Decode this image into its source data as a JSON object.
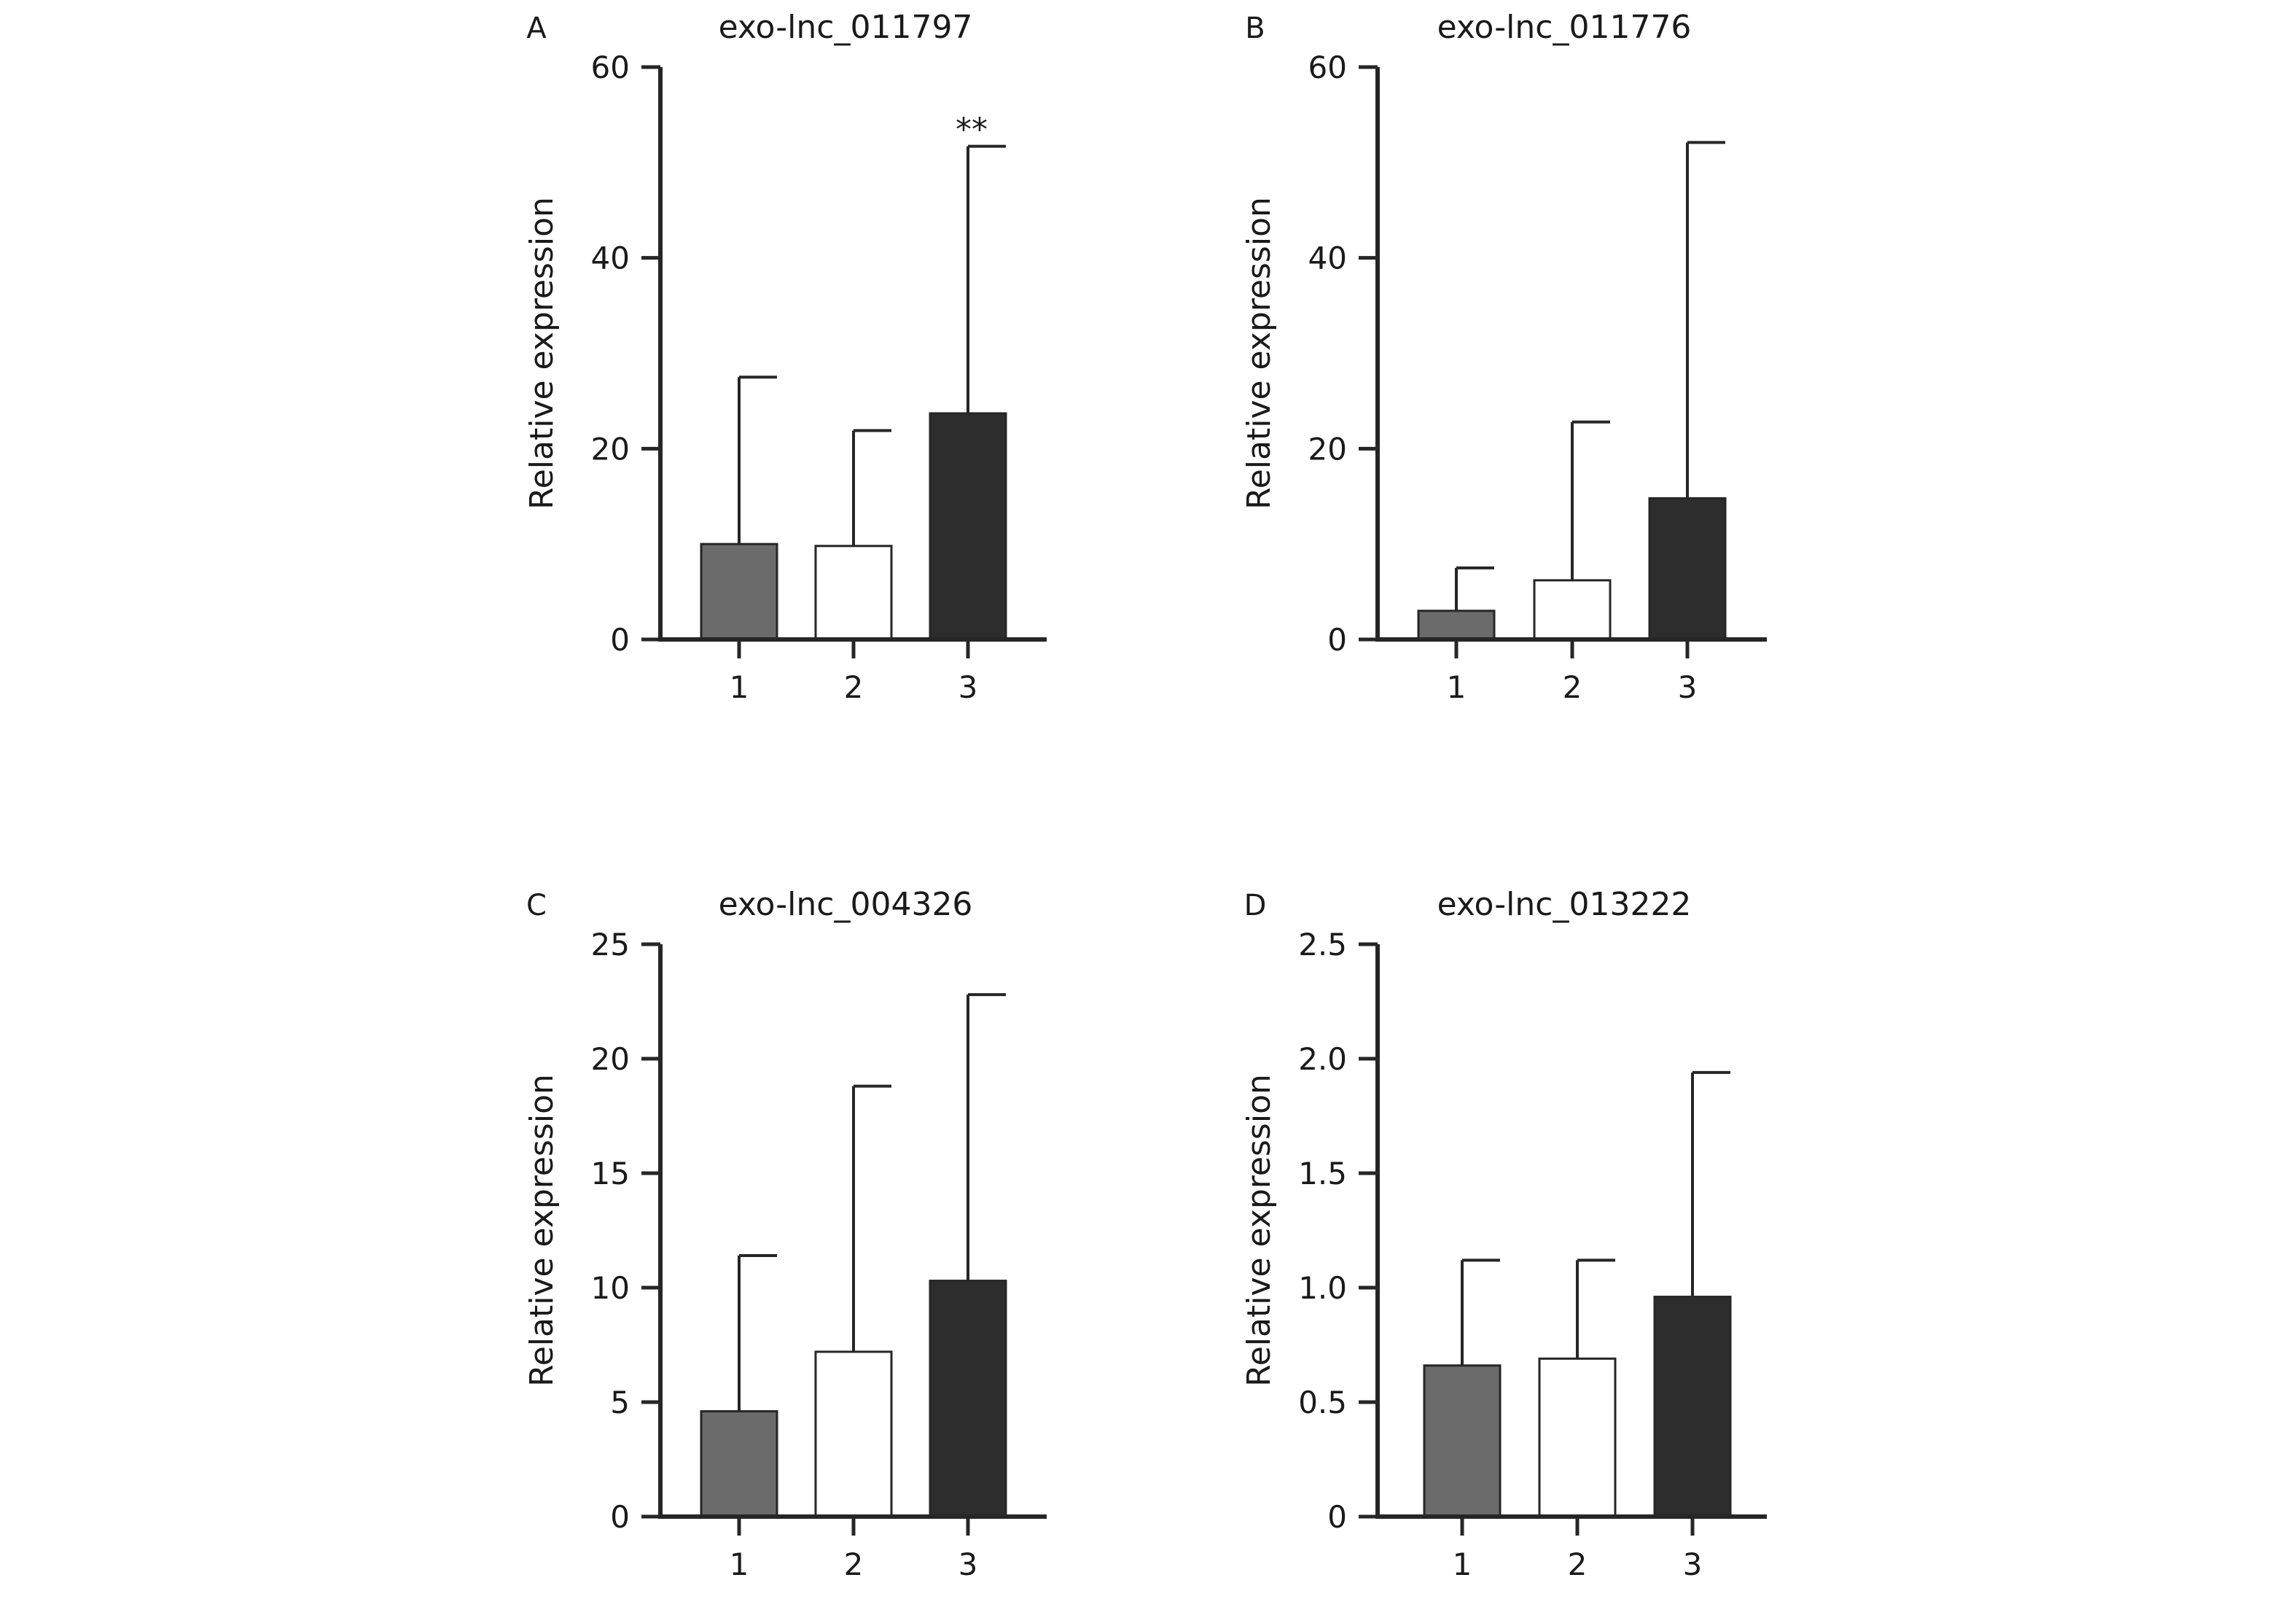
{
  "figure": {
    "panels": [
      {
        "letter": "A",
        "title": "exo-lnc_011797",
        "ylabel": "Relative expression"
      },
      {
        "letter": "B",
        "title": "exo-lnc_011776",
        "ylabel": "Relative expression"
      },
      {
        "letter": "C",
        "title": "exo-lnc_004326",
        "ylabel": "Relative expression"
      },
      {
        "letter": "D",
        "title": "exo-lnc_013222",
        "ylabel": "Relative expression"
      }
    ]
  },
  "chart_data": [
    {
      "type": "bar",
      "title": "exo-lnc_011797",
      "panel": "A",
      "xlabel": "",
      "ylabel": "Relative expression",
      "categories": [
        "1",
        "2",
        "3"
      ],
      "values": [
        10.0,
        9.8,
        23.7
      ],
      "error_upper": [
        27.5,
        21.9,
        51.7
      ],
      "ylim": [
        0,
        60
      ],
      "yticks": [
        0,
        20,
        40,
        60
      ],
      "ytick_labels": [
        "0",
        "20",
        "40",
        "60"
      ],
      "bar_colors": [
        "#6b6b6b",
        "#ffffff",
        "#2d2d2d"
      ],
      "annotations": [
        {
          "category": "3",
          "text": "**"
        }
      ],
      "grid": false
    },
    {
      "type": "bar",
      "title": "exo-lnc_011776",
      "panel": "B",
      "xlabel": "",
      "ylabel": "Relative expression",
      "categories": [
        "1",
        "2",
        "3"
      ],
      "values": [
        3.0,
        6.2,
        14.8
      ],
      "error_upper": [
        7.5,
        22.8,
        52.1
      ],
      "ylim": [
        0,
        60
      ],
      "yticks": [
        0,
        20,
        40,
        60
      ],
      "ytick_labels": [
        "0",
        "20",
        "40",
        "60"
      ],
      "bar_colors": [
        "#6b6b6b",
        "#ffffff",
        "#2d2d2d"
      ],
      "annotations": [],
      "grid": false
    },
    {
      "type": "bar",
      "title": "exo-lnc_004326",
      "panel": "C",
      "xlabel": "",
      "ylabel": "Relative expression",
      "categories": [
        "1",
        "2",
        "3"
      ],
      "values": [
        4.6,
        7.2,
        10.3
      ],
      "error_upper": [
        11.4,
        18.8,
        22.8
      ],
      "ylim": [
        0,
        25
      ],
      "yticks": [
        0,
        5,
        10,
        15,
        20,
        25
      ],
      "ytick_labels": [
        "0",
        "5",
        "10",
        "15",
        "20",
        "25"
      ],
      "bar_colors": [
        "#6b6b6b",
        "#ffffff",
        "#2d2d2d"
      ],
      "annotations": [],
      "grid": false
    },
    {
      "type": "bar",
      "title": "exo-lnc_013222",
      "panel": "D",
      "xlabel": "",
      "ylabel": "Relative expression",
      "categories": [
        "1",
        "2",
        "3"
      ],
      "values": [
        0.66,
        0.69,
        0.96
      ],
      "error_upper": [
        1.12,
        1.12,
        1.94
      ],
      "ylim": [
        0,
        2.5
      ],
      "yticks": [
        0,
        0.5,
        1.0,
        1.5,
        2.0,
        2.5
      ],
      "ytick_labels": [
        "0",
        "0.5",
        "1.0",
        "1.5",
        "2.0",
        "2.5"
      ],
      "bar_colors": [
        "#6b6b6b",
        "#ffffff",
        "#2d2d2d"
      ],
      "annotations": [],
      "grid": false
    }
  ]
}
